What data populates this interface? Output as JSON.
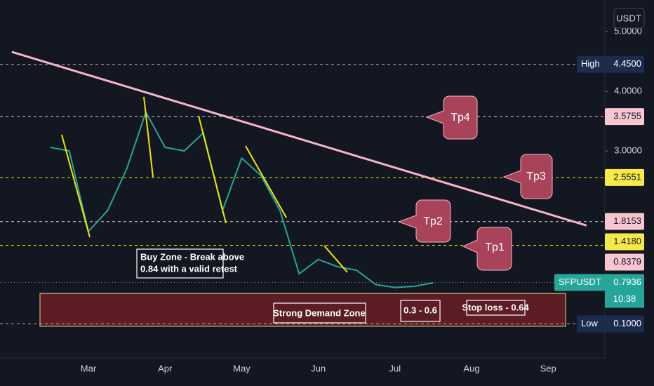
{
  "chart_data": {
    "type": "line",
    "currency": "USDT",
    "categories": [
      null,
      null,
      null,
      null,
      "Mar",
      null,
      null,
      null,
      "Apr",
      null,
      null,
      null,
      "May",
      null,
      null,
      null,
      "Jun",
      null,
      null,
      null,
      "Jul",
      null,
      null,
      null,
      "Aug",
      null,
      null,
      null,
      "Sep",
      null,
      null
    ],
    "series": [
      {
        "color": "#26a69a",
        "values": [
          null,
          null,
          3.06,
          3.0,
          1.65,
          2.0,
          2.7,
          3.65,
          3.06,
          3.0,
          3.3,
          2.0,
          2.88,
          2.59,
          2.0,
          0.94,
          1.18,
          1.06,
          1.0,
          0.76,
          0.71,
          0.73,
          0.79,
          null,
          null,
          null,
          null,
          null,
          null,
          null,
          null
        ]
      }
    ],
    "ylim": [
      -0.353,
      5.53
    ],
    "yticks": [
      {
        "value": 5,
        "label": "5.0000"
      },
      {
        "value": 4,
        "label": "4.0000"
      },
      {
        "value": 3,
        "label": "3.0000"
      }
    ],
    "levels": [
      {
        "name": "High",
        "value": 4.45,
        "label": "4.4500",
        "color": "#b2b5be",
        "style": "dashed",
        "label_bg": "#1b2c4f",
        "label_fg": "#ffffff"
      },
      {
        "value": 3.5755,
        "label": "3.5755",
        "color": "#d1d4dc",
        "style": "dashed",
        "label_bg": "#f8c6d0",
        "label_fg": "#131722"
      },
      {
        "value": 2.5551,
        "label": "2.5551",
        "color": "#f2e600",
        "style": "dashed",
        "label_bg": "#f7e94a",
        "label_fg": "#131722"
      },
      {
        "value": 1.8153,
        "label": "1.8153",
        "color": "#d1d4dc",
        "style": "dashed",
        "label_bg": "#f8c6d0",
        "label_fg": "#131722"
      },
      {
        "value": 1.418,
        "label": "1.4180",
        "color": "#f2e600",
        "style": "dashed",
        "label_bg": "#f7e94a",
        "label_fg": "#131722"
      },
      {
        "value": 0.8379,
        "label": "0.8379",
        "color": "#d1d4dc",
        "style": "none",
        "label_bg": "#f8c6d0",
        "label_fg": "#131722"
      },
      {
        "name": "SFPUSDT",
        "value": 0.7936,
        "label": "0.7936",
        "color": "#787b86",
        "style": "dotted",
        "label_bg": "#26a69a",
        "label_fg": "#ffffff",
        "time": "10:38"
      },
      {
        "name": "Low",
        "value": 0.1,
        "label": "0.1000",
        "color": "#b2b5be",
        "style": "dashed",
        "label_bg": "#1b2c4f",
        "label_fg": "#ffffff"
      }
    ],
    "trendline": {
      "color": "#f4b6c8",
      "values": [
        4.66,
        1.75
      ]
    },
    "demand_zone": {
      "top": 0.61,
      "bottom": 0.06,
      "color": "#6b1f24",
      "border": "#e8dc7a"
    },
    "annotations": {
      "callouts": [
        "Tp4",
        "Tp3",
        "Tp2",
        "Tp1"
      ],
      "buy_zone": [
        "Buy Zone - Break above",
        "0.84 with a valid retest"
      ],
      "zone_label": "Strong Demand Zone",
      "range_label": "0.3 - 0.6",
      "stop_loss": "Stop loss - 0.64"
    }
  }
}
